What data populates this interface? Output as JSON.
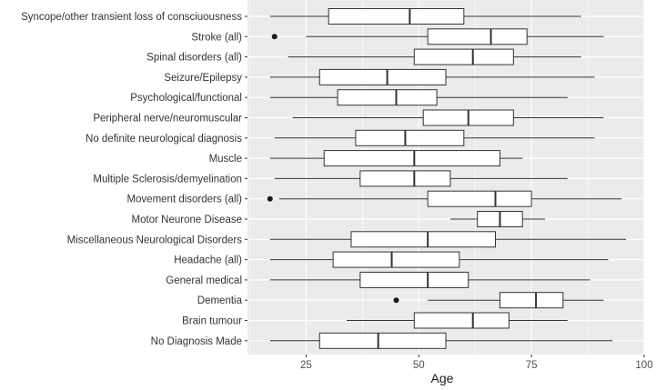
{
  "chart_data": {
    "type": "boxplot",
    "orientation": "horizontal",
    "xlabel": "Age",
    "ylabel": "",
    "xlim": [
      12,
      100
    ],
    "xticks": [
      25,
      50,
      75,
      100
    ],
    "grid": true,
    "legend": "none",
    "colors": {
      "panel_background": "#ebebeb",
      "grid_major": "#ffffff",
      "box_fill": "#ffffff",
      "line": "#333333",
      "outlier": "#1a1a1a"
    },
    "categories": [
      "Syncope/other transient loss of consciuousness",
      "Stroke (all)",
      "Spinal disorders (all)",
      "Seizure/Epilepsy",
      "Psychological/functional",
      "Peripheral nerve/neuromuscular",
      "No definite neurological diagnosis",
      "Muscle",
      "Multiple Sclerosis/demyelination",
      "Movement disorders (all)",
      "Motor Neurone Disease",
      "Miscellaneous Neurological Disorders",
      "Headache (all)",
      "General medical",
      "Dementia",
      "Brain tumour",
      "No Diagnosis Made"
    ],
    "boxes": [
      {
        "min": 17,
        "q1": 30,
        "median": 48,
        "q3": 60,
        "max": 86,
        "outliers": []
      },
      {
        "min": 25,
        "q1": 52,
        "median": 66,
        "q3": 74,
        "max": 91,
        "outliers": [
          18
        ]
      },
      {
        "min": 21,
        "q1": 49,
        "median": 62,
        "q3": 71,
        "max": 86,
        "outliers": []
      },
      {
        "min": 17,
        "q1": 28,
        "median": 43,
        "q3": 56,
        "max": 89,
        "outliers": []
      },
      {
        "min": 17,
        "q1": 32,
        "median": 45,
        "q3": 54,
        "max": 83,
        "outliers": []
      },
      {
        "min": 22,
        "q1": 51,
        "median": 61,
        "q3": 71,
        "max": 91,
        "outliers": []
      },
      {
        "min": 18,
        "q1": 36,
        "median": 47,
        "q3": 60,
        "max": 89,
        "outliers": []
      },
      {
        "min": 17,
        "q1": 29,
        "median": 49,
        "q3": 68,
        "max": 73,
        "outliers": []
      },
      {
        "min": 18,
        "q1": 37,
        "median": 49,
        "q3": 57,
        "max": 83,
        "outliers": []
      },
      {
        "min": 19,
        "q1": 52,
        "median": 67,
        "q3": 75,
        "max": 95,
        "outliers": [
          17
        ]
      },
      {
        "min": 57,
        "q1": 63,
        "median": 68,
        "q3": 73,
        "max": 78,
        "outliers": []
      },
      {
        "min": 17,
        "q1": 35,
        "median": 52,
        "q3": 67,
        "max": 96,
        "outliers": []
      },
      {
        "min": 17,
        "q1": 31,
        "median": 44,
        "q3": 59,
        "max": 92,
        "outliers": []
      },
      {
        "min": 17,
        "q1": 37,
        "median": 52,
        "q3": 61,
        "max": 88,
        "outliers": []
      },
      {
        "min": 52,
        "q1": 68,
        "median": 76,
        "q3": 82,
        "max": 91,
        "outliers": [
          45
        ]
      },
      {
        "min": 34,
        "q1": 49,
        "median": 62,
        "q3": 70,
        "max": 83,
        "outliers": []
      },
      {
        "min": 17,
        "q1": 28,
        "median": 41,
        "q3": 56,
        "max": 93,
        "outliers": []
      }
    ]
  }
}
